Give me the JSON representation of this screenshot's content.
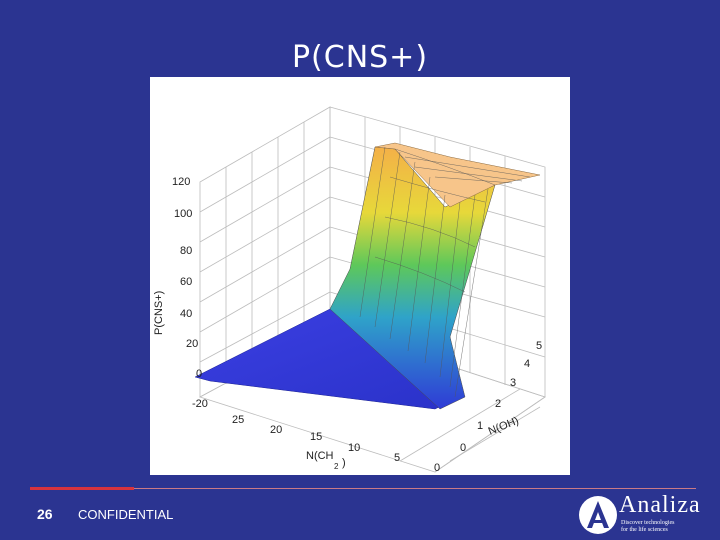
{
  "slide": {
    "title": "P(CNS+)",
    "page_number": "26",
    "footer_text": "CONFIDENTIAL"
  },
  "logo": {
    "wordmark": "Analiza",
    "tagline_line1": "Discover technologies",
    "tagline_line2": "for the life sciences"
  },
  "chart_data": {
    "type": "surface3d",
    "z_ticks": [
      "120",
      "100",
      "80",
      "60",
      "40",
      "20",
      "0",
      "-20"
    ],
    "x_ticks": [
      "25",
      "20",
      "15",
      "10",
      "5",
      "0"
    ],
    "y_ticks": [
      "0",
      "1",
      "2",
      "3",
      "4",
      "5"
    ],
    "x_label": "N(CH",
    "x_label_sub": "2",
    "x_label_end": ")",
    "z_label": "P(CNS+)",
    "y_label": "N(OH)",
    "z_range": [
      -20,
      120
    ],
    "x_range": [
      0,
      25
    ],
    "y_range": [
      0,
      5
    ],
    "colors": {
      "low": "#2f3bd6",
      "mid": "#3fbf6f",
      "high": "#f5b04a",
      "top": "#f7c58a"
    }
  }
}
